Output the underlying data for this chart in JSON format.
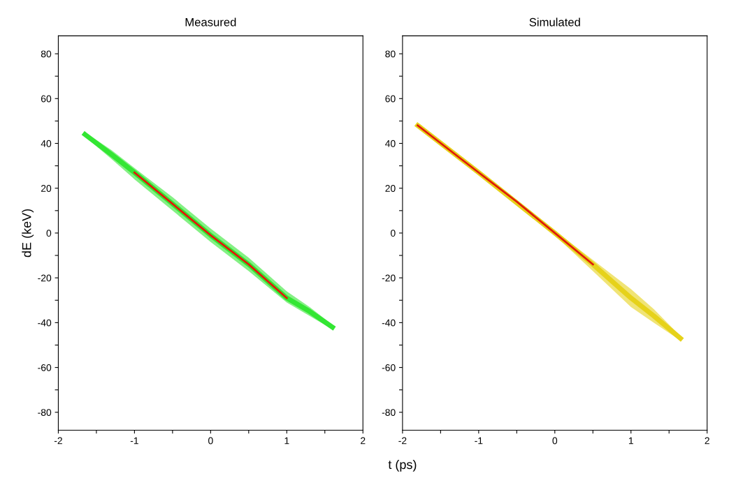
{
  "chart_data": [
    {
      "type": "line",
      "title": "Measured",
      "ylabel": "dE (keV)",
      "xlim": [
        -2,
        2
      ],
      "ylim": [
        -88,
        88
      ],
      "xticks": [
        -2,
        {
          "value": -1.5,
          "label": null
        },
        -1,
        {
          "value": -0.5,
          "label": null
        },
        0,
        {
          "value": 0.5,
          "label": null
        },
        1,
        {
          "value": 1.5,
          "label": null
        },
        2
      ],
      "yticks": [
        -80,
        {
          "value": -70,
          "label": null
        },
        -60,
        {
          "value": -50,
          "label": null
        },
        -40,
        {
          "value": -30,
          "label": null
        },
        -20,
        {
          "value": -10,
          "label": null
        },
        0,
        {
          "value": 10,
          "label": null
        },
        20,
        {
          "value": 30,
          "label": null
        },
        40,
        {
          "value": 50,
          "label": null
        },
        60,
        {
          "value": 70,
          "label": null
        },
        80
      ],
      "grid": false,
      "marker": "none",
      "line_style": "solid",
      "series": [
        {
          "color": "#33e633",
          "x": [
            -1.65,
            -1.3,
            -1.0,
            -0.5,
            0.0,
            0.5,
            1.0,
            1.3,
            1.6
          ],
          "values": [
            44,
            35,
            27,
            13,
            -1,
            -14,
            -29,
            -35,
            -42
          ],
          "lower": [
            43,
            33,
            24,
            10,
            -4,
            -17,
            -31,
            -37,
            -43
          ],
          "upper": [
            45,
            37,
            29,
            16,
            2,
            -11,
            -26,
            -33,
            -41
          ]
        },
        {
          "color": "#e01a0a",
          "x": [
            -1.0,
            -0.5,
            0.0,
            0.5,
            1.0
          ],
          "values": [
            27,
            13,
            -1,
            -14,
            -29
          ]
        }
      ]
    },
    {
      "type": "line",
      "title": "Simulated",
      "xlabel": "t (ps)",
      "xlim": [
        -2,
        2
      ],
      "ylim": [
        -88,
        88
      ],
      "xticks": [
        -2,
        {
          "value": -1.5,
          "label": null
        },
        -1,
        {
          "value": -0.5,
          "label": null
        },
        0,
        {
          "value": 0.5,
          "label": null
        },
        1,
        {
          "value": 1.5,
          "label": null
        },
        2
      ],
      "yticks": [
        -80,
        {
          "value": -70,
          "label": null
        },
        -60,
        {
          "value": -50,
          "label": null
        },
        -40,
        {
          "value": -30,
          "label": null
        },
        -20,
        {
          "value": -10,
          "label": null
        },
        0,
        {
          "value": 10,
          "label": null
        },
        20,
        {
          "value": 30,
          "label": null
        },
        40,
        {
          "value": 50,
          "label": null
        },
        60,
        {
          "value": 70,
          "label": null
        },
        80
      ],
      "grid": false,
      "marker": "none",
      "line_style": "solid",
      "series": [
        {
          "color": "#e6d21a",
          "x": [
            -1.8,
            -1.0,
            0.0,
            0.5,
            1.0,
            1.3,
            1.65
          ],
          "values": [
            48,
            27,
            0,
            -14,
            -29,
            -37,
            -47
          ],
          "lower": [
            47,
            26,
            -1,
            -17,
            -33,
            -40,
            -48
          ],
          "upper": [
            49,
            28,
            1,
            -12,
            -25,
            -34,
            -46
          ]
        },
        {
          "color": "#e01a0a",
          "x": [
            -1.8,
            -1.0,
            -0.5,
            0.0,
            0.5
          ],
          "values": [
            48,
            27,
            14,
            0,
            -14
          ]
        }
      ]
    }
  ]
}
